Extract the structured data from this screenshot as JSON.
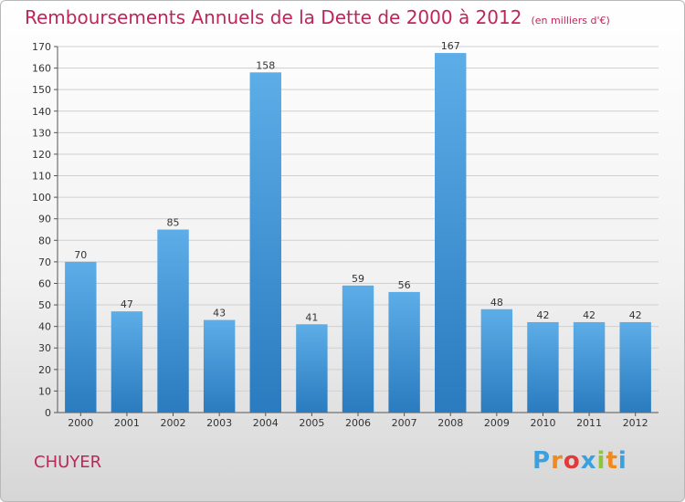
{
  "header": {
    "title": "Remboursements Annuels de la Dette de 2000 à 2012",
    "subtitle": "(en milliers d'€)"
  },
  "footer": {
    "commune": "CHUYER",
    "logo_letters": [
      "P",
      "r",
      "o",
      "x",
      "i",
      "t",
      "i"
    ],
    "logo_colors": [
      "#3aa0e0",
      "#f08a1c",
      "#e03a3a",
      "#3aa0e0",
      "#8cc63f",
      "#f08a1c",
      "#3aa0e0"
    ]
  },
  "colors": {
    "title": "#c0255a",
    "bar_light": "#5dade8",
    "bar_dark": "#2a7bbf",
    "grid": "#cfcfcf"
  },
  "chart_data": {
    "type": "bar",
    "title": "Remboursements Annuels de la Dette de 2000 à 2012",
    "categories": [
      "2000",
      "2001",
      "2002",
      "2003",
      "2004",
      "2005",
      "2006",
      "2007",
      "2008",
      "2009",
      "2010",
      "2011",
      "2012"
    ],
    "values": [
      70,
      47,
      85,
      43,
      158,
      41,
      59,
      56,
      167,
      48,
      42,
      42,
      42
    ],
    "ylim": [
      0,
      170
    ],
    "yticks": [
      0,
      10,
      20,
      30,
      40,
      50,
      60,
      70,
      80,
      90,
      100,
      110,
      120,
      130,
      140,
      150,
      160,
      170
    ],
    "grid": true,
    "xlabel": "",
    "ylabel": ""
  }
}
